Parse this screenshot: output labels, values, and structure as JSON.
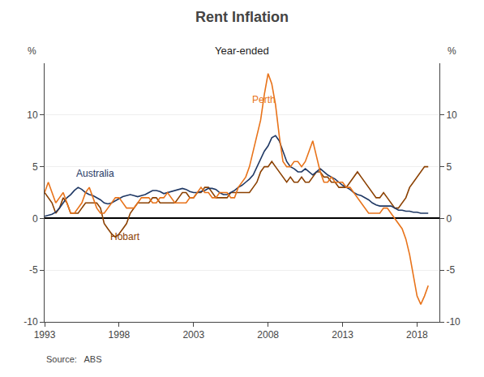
{
  "chart_data": {
    "type": "line",
    "title": "Rent Inflation",
    "subtitle": "Year-ended",
    "y_label": "%",
    "y2_label": "%",
    "source": "Source:   ABS",
    "x": [
      1993.0,
      1993.25,
      1993.5,
      1993.75,
      1994.0,
      1994.25,
      1994.5,
      1994.75,
      1995.0,
      1995.25,
      1995.5,
      1995.75,
      1996.0,
      1996.25,
      1996.5,
      1996.75,
      1997.0,
      1997.25,
      1997.5,
      1997.75,
      1998.0,
      1998.25,
      1998.5,
      1998.75,
      1999.0,
      1999.25,
      1999.5,
      1999.75,
      2000.0,
      2000.25,
      2000.5,
      2000.75,
      2001.0,
      2001.25,
      2001.5,
      2001.75,
      2002.0,
      2002.25,
      2002.5,
      2002.75,
      2003.0,
      2003.25,
      2003.5,
      2003.75,
      2004.0,
      2004.25,
      2004.5,
      2004.75,
      2005.0,
      2005.25,
      2005.5,
      2005.75,
      2006.0,
      2006.25,
      2006.5,
      2006.75,
      2007.0,
      2007.25,
      2007.5,
      2007.75,
      2008.0,
      2008.25,
      2008.5,
      2008.75,
      2009.0,
      2009.25,
      2009.5,
      2009.75,
      2010.0,
      2010.25,
      2010.5,
      2010.75,
      2011.0,
      2011.25,
      2011.5,
      2011.75,
      2012.0,
      2012.25,
      2012.5,
      2012.75,
      2013.0,
      2013.25,
      2013.5,
      2013.75,
      2014.0,
      2014.25,
      2014.5,
      2014.75,
      2015.0,
      2015.25,
      2015.5,
      2015.75,
      2016.0,
      2016.25,
      2016.5,
      2016.75,
      2017.0,
      2017.25,
      2017.5,
      2017.75,
      2018.0,
      2018.25,
      2018.5,
      2018.75
    ],
    "series": [
      {
        "name": "Hobart",
        "color": "#8B4000",
        "values": [
          2.5,
          2.0,
          1.5,
          0.5,
          1.0,
          2.0,
          1.5,
          0.5,
          0.5,
          0.5,
          1.0,
          1.5,
          1.5,
          1.5,
          1.5,
          1.0,
          -0.5,
          -1.0,
          -1.5,
          -1.8,
          -1.5,
          -1.0,
          -0.5,
          0.5,
          1.0,
          1.5,
          1.5,
          1.5,
          1.5,
          2.0,
          2.0,
          1.5,
          1.5,
          1.5,
          1.5,
          1.5,
          2.0,
          2.5,
          2.5,
          2.0,
          2.0,
          2.5,
          2.5,
          3.0,
          3.0,
          2.5,
          2.0,
          2.0,
          2.0,
          2.0,
          2.5,
          2.5,
          2.5,
          2.5,
          2.5,
          2.5,
          3.0,
          3.5,
          4.5,
          5.0,
          5.0,
          5.5,
          5.0,
          4.5,
          4.0,
          3.5,
          4.0,
          3.5,
          3.5,
          4.0,
          3.5,
          3.5,
          4.0,
          4.5,
          4.5,
          4.0,
          4.0,
          3.5,
          3.5,
          3.0,
          3.0,
          3.0,
          3.5,
          4.0,
          4.5,
          4.0,
          3.5,
          3.0,
          2.5,
          2.0,
          2.0,
          2.5,
          2.0,
          1.5,
          1.0,
          1.0,
          1.5,
          2.0,
          3.0,
          3.5,
          4.0,
          4.5,
          5.0,
          5.0
        ]
      },
      {
        "name": "Australia",
        "color": "#1F3864",
        "values": [
          0.2,
          0.3,
          0.4,
          0.6,
          1.0,
          1.5,
          2.0,
          2.3,
          2.7,
          3.0,
          2.8,
          2.5,
          2.3,
          2.2,
          2.0,
          1.8,
          1.5,
          1.4,
          1.5,
          1.7,
          1.9,
          2.1,
          2.2,
          2.3,
          2.2,
          2.1,
          2.2,
          2.3,
          2.5,
          2.7,
          2.7,
          2.6,
          2.4,
          2.5,
          2.6,
          2.7,
          2.8,
          2.9,
          2.8,
          2.6,
          2.5,
          2.5,
          2.6,
          2.7,
          2.9,
          2.9,
          2.8,
          2.5,
          2.3,
          2.3,
          2.5,
          2.7,
          3.0,
          3.2,
          3.5,
          3.8,
          4.2,
          5.0,
          5.8,
          6.5,
          7.0,
          7.8,
          8.0,
          7.5,
          6.5,
          5.5,
          5.0,
          4.8,
          4.5,
          4.5,
          4.8,
          4.5,
          4.2,
          4.5,
          4.8,
          4.5,
          4.2,
          4.0,
          3.8,
          3.5,
          3.2,
          3.0,
          2.8,
          2.5,
          2.3,
          2.2,
          2.0,
          1.8,
          1.5,
          1.3,
          1.2,
          1.2,
          1.2,
          1.2,
          1.0,
          0.8,
          0.8,
          0.7,
          0.7,
          0.6,
          0.6,
          0.5,
          0.5,
          0.5
        ]
      },
      {
        "name": "Perth",
        "color": "#E8731A",
        "values": [
          2.5,
          3.5,
          2.5,
          1.5,
          2.0,
          2.5,
          1.5,
          0.5,
          0.5,
          1.0,
          1.5,
          2.5,
          3.0,
          2.0,
          1.0,
          0.5,
          0.5,
          1.0,
          1.5,
          2.0,
          2.0,
          1.5,
          1.0,
          1.0,
          1.0,
          1.5,
          2.0,
          2.0,
          2.0,
          1.5,
          1.5,
          2.0,
          2.0,
          2.5,
          2.0,
          1.5,
          1.5,
          1.5,
          1.5,
          2.0,
          2.0,
          2.5,
          3.0,
          2.5,
          2.5,
          2.0,
          2.0,
          2.5,
          2.5,
          2.5,
          2.0,
          2.0,
          3.0,
          3.5,
          4.0,
          5.0,
          6.5,
          8.0,
          9.5,
          12.0,
          14.0,
          13.0,
          11.0,
          8.0,
          5.5,
          5.0,
          5.0,
          5.5,
          5.5,
          5.0,
          5.5,
          6.5,
          7.5,
          6.0,
          4.5,
          3.5,
          3.5,
          4.0,
          3.5,
          3.5,
          3.5,
          3.0,
          3.0,
          2.5,
          2.0,
          1.5,
          1.0,
          0.5,
          0.5,
          0.5,
          0.5,
          1.0,
          1.0,
          0.5,
          0.0,
          -0.5,
          -1.0,
          -2.0,
          -3.5,
          -5.5,
          -7.5,
          -8.3,
          -7.5,
          -6.5
        ]
      }
    ],
    "xlim": [
      1993,
      2019.5
    ],
    "xticks": [
      1993,
      1998,
      2003,
      2008,
      2013,
      2018
    ],
    "ylim": [
      -10,
      15
    ],
    "yticks": [
      -10,
      -5,
      0,
      5,
      10
    ],
    "y2lim": [
      -10,
      15
    ],
    "y2ticks": [
      -10,
      -5,
      0,
      5,
      10
    ],
    "grid": "y",
    "annotations": [
      {
        "text": "Australia",
        "x": 1995.0,
        "y": 3.6,
        "color": "#1F3864"
      },
      {
        "text": "Perth",
        "x": 2006.8,
        "y": 10.8,
        "color": "#E8731A"
      },
      {
        "text": "Hobart",
        "x": 1997.3,
        "y": -2.5,
        "color": "#8B4000"
      }
    ]
  }
}
